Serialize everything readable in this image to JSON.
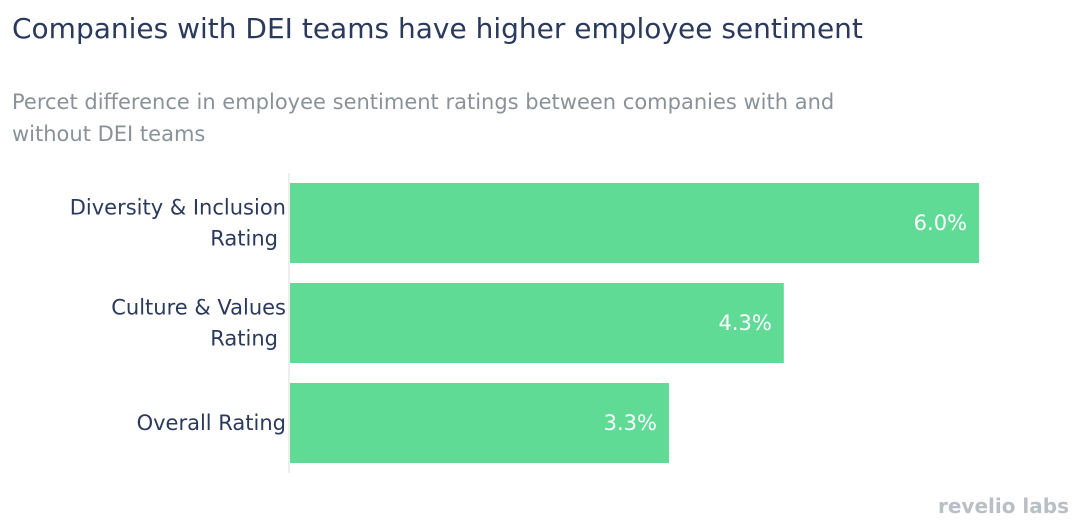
{
  "title": "Companies with DEI teams have higher employee sentiment",
  "subtitle": "Percet difference in employee sentiment ratings between companies with and without DEI teams",
  "logo_text": "revelio labs",
  "colors": {
    "bar": "#5fdb96",
    "axis": "#dddddd",
    "label": "#2b3a5c"
  },
  "chart_data": {
    "type": "bar",
    "orientation": "horizontal",
    "categories": [
      [
        "Diversity & Inclusion",
        "Rating"
      ],
      [
        "Culture & Values",
        "Rating"
      ],
      [
        "Overall Rating"
      ]
    ],
    "values": [
      6.0,
      4.3,
      3.3
    ],
    "data_labels": [
      "6.0%",
      "4.3%",
      "3.3%"
    ],
    "xlim": [
      0,
      6.2
    ],
    "grid": false,
    "legend": "none"
  }
}
